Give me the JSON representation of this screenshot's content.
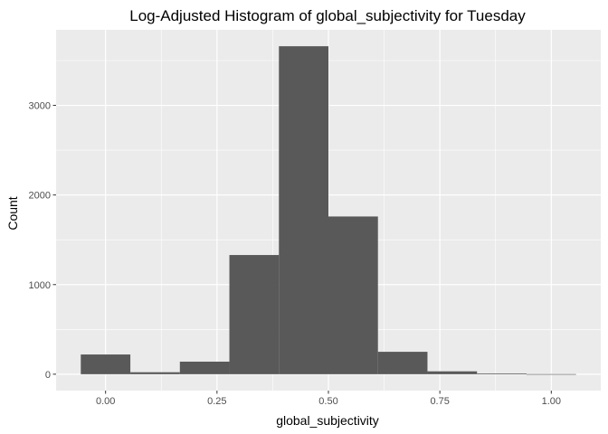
{
  "chart_data": {
    "type": "bar",
    "title": "Log-Adjusted Histogram of global_subjectivity for Tuesday",
    "xlabel": "global_subjectivity",
    "ylabel": "Count",
    "xlim": [
      -0.111,
      1.111
    ],
    "ylim": [
      -183,
      3843
    ],
    "xticks": [
      {
        "value": 0.0,
        "label": "0.00"
      },
      {
        "value": 0.25,
        "label": "0.25"
      },
      {
        "value": 0.5,
        "label": "0.50"
      },
      {
        "value": 0.75,
        "label": "0.75"
      },
      {
        "value": 1.0,
        "label": "1.00"
      }
    ],
    "yticks": [
      {
        "value": 0,
        "label": "0"
      },
      {
        "value": 1000,
        "label": "1000"
      },
      {
        "value": 2000,
        "label": "2000"
      },
      {
        "value": 3000,
        "label": "3000"
      }
    ],
    "bins": [
      {
        "x0": -0.0556,
        "x1": 0.0556,
        "count": 220
      },
      {
        "x0": 0.0556,
        "x1": 0.1667,
        "count": 22
      },
      {
        "x0": 0.1667,
        "x1": 0.2778,
        "count": 140
      },
      {
        "x0": 0.2778,
        "x1": 0.3889,
        "count": 1330
      },
      {
        "x0": 0.3889,
        "x1": 0.5,
        "count": 3660
      },
      {
        "x0": 0.5,
        "x1": 0.6111,
        "count": 1760
      },
      {
        "x0": 0.6111,
        "x1": 0.7222,
        "count": 250
      },
      {
        "x0": 0.7222,
        "x1": 0.8333,
        "count": 32
      },
      {
        "x0": 0.8333,
        "x1": 0.9444,
        "count": 8
      },
      {
        "x0": 0.9444,
        "x1": 1.0556,
        "count": 1
      }
    ],
    "grid": true,
    "colors": {
      "panel": "#ebebeb",
      "grid_major": "#ffffff",
      "bar_fill": "#595959",
      "tick_label": "#4d4d4d",
      "tick_mark": "#333333"
    }
  }
}
